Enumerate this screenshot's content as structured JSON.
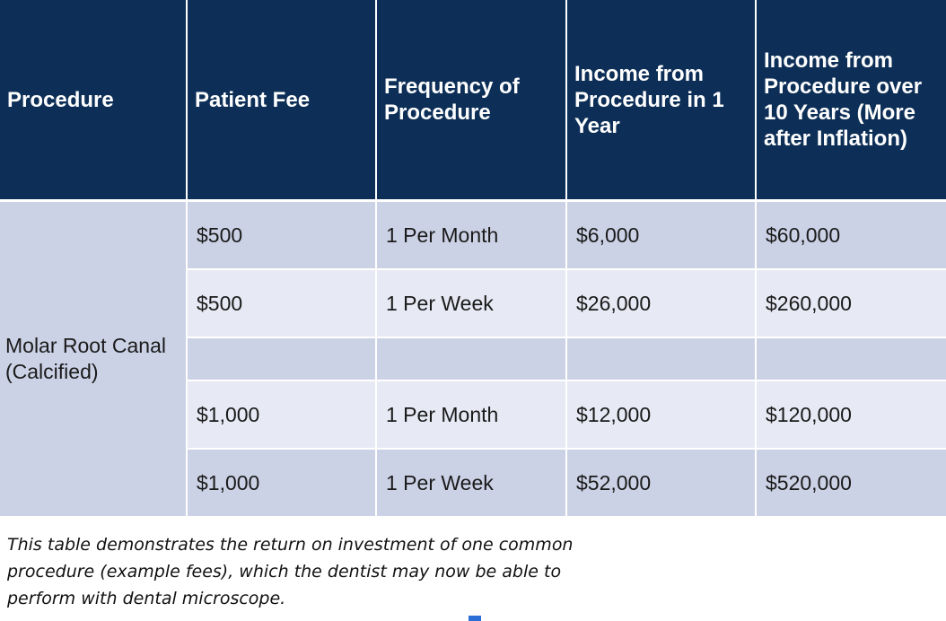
{
  "table": {
    "headers": [
      "Procedure",
      "Patient Fee",
      "Frequency of Procedure",
      "Income from Procedure in 1 Year",
      "Income from Procedure over 10 Years (More after Inflation)"
    ],
    "procedure": "Molar Root Canal (Calcified)",
    "rows": [
      {
        "fee": "$500",
        "frequency": "1 Per Month",
        "income_1yr": "$6,000",
        "income_10yr": "$60,000"
      },
      {
        "fee": "$500",
        "frequency": "1 Per Week",
        "income_1yr": "$26,000",
        "income_10yr": "$260,000"
      },
      {
        "fee": "",
        "frequency": "",
        "income_1yr": "",
        "income_10yr": ""
      },
      {
        "fee": "$1,000",
        "frequency": "1 Per Month",
        "income_1yr": "$12,000",
        "income_10yr": "$120,000"
      },
      {
        "fee": "$1,000",
        "frequency": "1 Per Week",
        "income_1yr": "$52,000",
        "income_10yr": "$520,000"
      }
    ]
  },
  "caption": "This table demonstrates the return on investment of one common procedure (example fees), which the dentist may now be able to perform with dental microscope.",
  "colors": {
    "header_bg": "#0d2f57",
    "row_dark": "#ccd2e6",
    "row_light": "#e7e9f4",
    "marker": "#2b6fd6"
  }
}
